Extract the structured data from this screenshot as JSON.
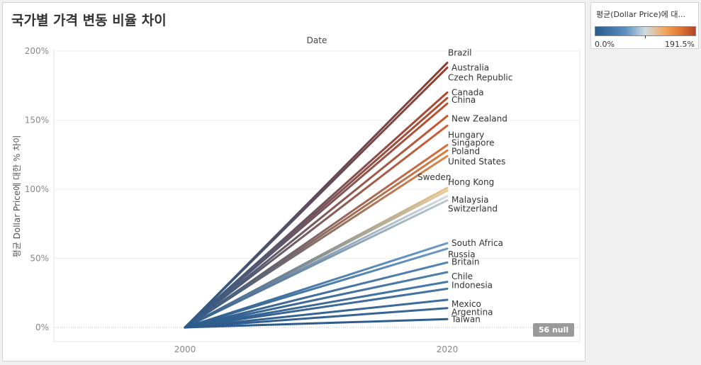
{
  "title": "국가별 가격 변동 비율 차이",
  "legend": {
    "title": "평균(Dollar Price)에 대...",
    "min_label": "0.0%",
    "max_label": "191.5%",
    "colors": [
      "#2a5a8c",
      "#5b8fbf",
      "#d0dce3",
      "#f2a35a",
      "#b5452a"
    ]
  },
  "null_badge": "56 null",
  "chart_data": {
    "type": "line",
    "title": "국가별 가격 변동 비율 차이",
    "header_label": "Date",
    "xlabel": "",
    "ylabel": "평균 Dollar Price에 대한 % 차이",
    "x": [
      2000,
      2020
    ],
    "x_ticks": [
      "2000",
      "2020"
    ],
    "ylim": [
      -10,
      200
    ],
    "y_ticks": [
      0,
      50,
      100,
      150,
      200
    ],
    "y_tick_labels": [
      "0%",
      "50%",
      "100%",
      "150%",
      "200%"
    ],
    "grid": true,
    "series": [
      {
        "name": "Brazil",
        "values": [
          0,
          191.5
        ],
        "color": "#8c3d30"
      },
      {
        "name": "Australia",
        "values": [
          0,
          188
        ],
        "color": "#973f2c"
      },
      {
        "name": "Czech Republic",
        "values": [
          0,
          170
        ],
        "color": "#b24a2d"
      },
      {
        "name": "Canada",
        "values": [
          0,
          166
        ],
        "color": "#b94c2c"
      },
      {
        "name": "China",
        "values": [
          0,
          162
        ],
        "color": "#be512e"
      },
      {
        "name": "New Zealand",
        "values": [
          0,
          153
        ],
        "color": "#c9592f"
      },
      {
        "name": "Hungary",
        "values": [
          0,
          146
        ],
        "color": "#d05f31"
      },
      {
        "name": "Singapore",
        "values": [
          0,
          132
        ],
        "color": "#d96f38"
      },
      {
        "name": "Poland",
        "values": [
          0,
          128
        ],
        "color": "#dd7a3e"
      },
      {
        "name": "United States",
        "values": [
          0,
          124
        ],
        "color": "#e08443"
      },
      {
        "name": "Sweden",
        "values": [
          0,
          101
        ],
        "color": "#e8c48a"
      },
      {
        "name": "Hong Kong",
        "values": [
          0,
          99
        ],
        "color": "#e4cda1"
      },
      {
        "name": "Malaysia",
        "values": [
          0,
          95
        ],
        "color": "#d6dbdc"
      },
      {
        "name": "Switzerland",
        "values": [
          0,
          92
        ],
        "color": "#bcc8cf"
      },
      {
        "name": "South Africa",
        "values": [
          0,
          61
        ],
        "color": "#6d9cc9"
      },
      {
        "name": "Russia",
        "values": [
          0,
          57
        ],
        "color": "#6a99c4"
      },
      {
        "name": "Britain",
        "values": [
          0,
          47
        ],
        "color": "#5584b3"
      },
      {
        "name": "Chile",
        "values": [
          0,
          40
        ],
        "color": "#507fae"
      },
      {
        "name": "Indonesia",
        "values": [
          0,
          33
        ],
        "color": "#4a7aa8"
      },
      {
        "name": "",
        "values": [
          0,
          28
        ],
        "color": "#4776a4"
      },
      {
        "name": "Mexico",
        "values": [
          0,
          20
        ],
        "color": "#3f6e9c"
      },
      {
        "name": "Argentina",
        "values": [
          0,
          14
        ],
        "color": "#3a6997"
      },
      {
        "name": "Taiwan",
        "values": [
          0,
          6
        ],
        "color": "#2f5f8e"
      }
    ]
  }
}
